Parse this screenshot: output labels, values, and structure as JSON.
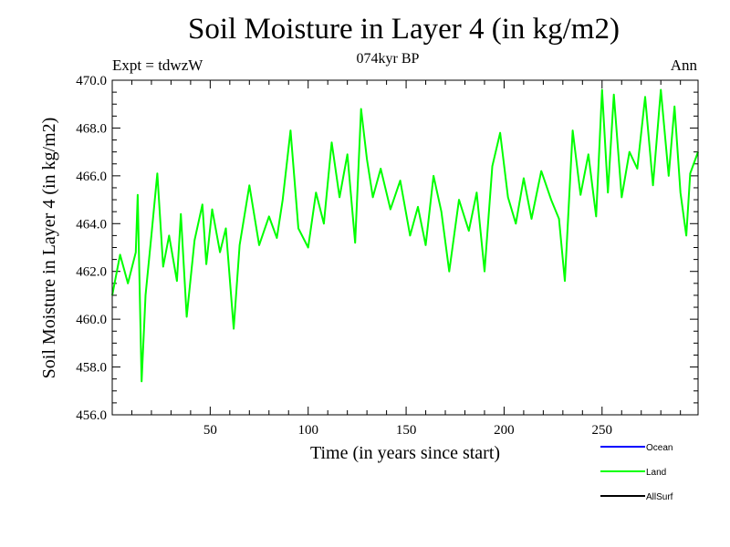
{
  "chart_data": {
    "type": "line",
    "title": "Soil Moisture in Layer 4 (in kg/m2)",
    "subtitle": "074kyr BP",
    "experiment": "Expt = tdwzW",
    "season": "Ann",
    "xlabel": "Time (in years since start)",
    "ylabel": "Soil Moisture in Layer 4 (in kg/m2)",
    "xlim": [
      0,
      299
    ],
    "ylim": [
      456.0,
      470.0
    ],
    "xticks": [
      50,
      100,
      150,
      200,
      250
    ],
    "yticks": [
      "456.0",
      "458.0",
      "460.0",
      "462.0",
      "464.0",
      "466.0",
      "468.0",
      "470.0"
    ],
    "legend": [
      {
        "name": "Ocean",
        "color": "#0000ff"
      },
      {
        "name": "Land",
        "color": "#00ff00"
      },
      {
        "name": "AllSurf",
        "color": "#000000"
      }
    ],
    "series": [
      {
        "name": "Land",
        "color": "#00ff00",
        "x": [
          0,
          4,
          8,
          12,
          13,
          15,
          17,
          20,
          23,
          26,
          29,
          33,
          35,
          38,
          42,
          46,
          48,
          51,
          55,
          58,
          62,
          65,
          70,
          75,
          80,
          84,
          87,
          91,
          95,
          100,
          104,
          108,
          112,
          116,
          120,
          124,
          127,
          130,
          133,
          137,
          142,
          147,
          152,
          156,
          160,
          164,
          168,
          172,
          177,
          182,
          186,
          190,
          194,
          198,
          202,
          206,
          210,
          214,
          219,
          224,
          228,
          231,
          235,
          239,
          243,
          247,
          250,
          253,
          256,
          260,
          264,
          268,
          272,
          276,
          280,
          284,
          287,
          290,
          293,
          295,
          299
        ],
        "values": [
          461.0,
          462.7,
          461.5,
          462.8,
          465.2,
          457.4,
          461.0,
          463.5,
          466.1,
          462.2,
          463.5,
          461.6,
          464.4,
          460.1,
          463.3,
          464.8,
          462.3,
          464.6,
          462.8,
          463.8,
          459.6,
          463.1,
          465.6,
          463.1,
          464.3,
          463.4,
          465.0,
          467.9,
          463.8,
          463.0,
          465.3,
          464.0,
          467.4,
          465.1,
          466.9,
          463.2,
          468.8,
          466.7,
          465.1,
          466.3,
          464.6,
          465.8,
          463.5,
          464.7,
          463.1,
          466.0,
          464.5,
          462.0,
          465.0,
          463.7,
          465.3,
          462.0,
          466.4,
          467.8,
          465.1,
          464.0,
          465.9,
          464.2,
          466.2,
          465.0,
          464.2,
          461.6,
          467.9,
          465.2,
          466.9,
          464.3,
          469.6,
          465.3,
          469.4,
          465.1,
          467.0,
          466.3,
          469.3,
          465.6,
          469.6,
          466.0,
          468.9,
          465.3,
          463.5,
          466.1,
          467.0
        ]
      },
      {
        "name": "Ocean",
        "color": "#0000ff",
        "x": [],
        "values": []
      },
      {
        "name": "AllSurf",
        "color": "#000000",
        "x": [],
        "values": []
      }
    ]
  }
}
